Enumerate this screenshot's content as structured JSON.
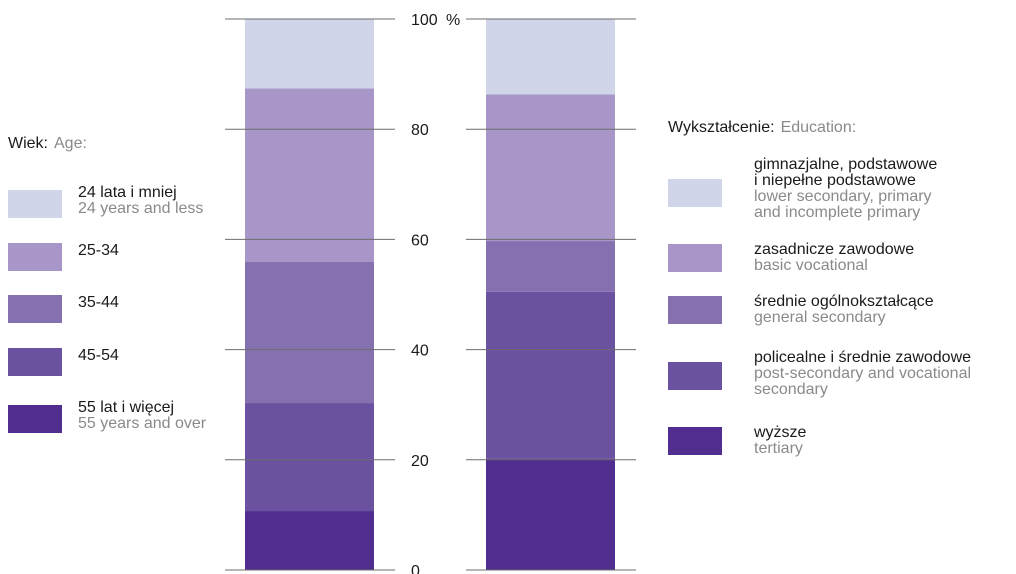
{
  "chart_data": {
    "type": "bar",
    "stacked": true,
    "yaxis": {
      "ylim": [
        0,
        100
      ],
      "ticks": [
        "0",
        "20",
        "40",
        "60",
        "80",
        "100"
      ],
      "unit": "%"
    },
    "bars": [
      {
        "id": "age",
        "segments": [
          {
            "value": 10.7,
            "color": "#512d8f"
          },
          {
            "value": 19.6,
            "color": "#6a52a0"
          },
          {
            "value": 25.6,
            "color": "#8671b0"
          },
          {
            "value": 31.5,
            "color": "#a796c7"
          },
          {
            "value": 12.6,
            "color": "#d1d5ea"
          }
        ]
      },
      {
        "id": "education",
        "segments": [
          {
            "value": 20.2,
            "color": "#512d8f"
          },
          {
            "value": 30.3,
            "color": "#6a52a0"
          },
          {
            "value": 9.2,
            "color": "#8671b0"
          },
          {
            "value": 26.6,
            "color": "#a796c7"
          },
          {
            "value": 13.7,
            "color": "#d1d5ea"
          }
        ]
      }
    ]
  },
  "legend_age": {
    "title_pl": "Wiek:",
    "title_en": "Age:",
    "items": [
      {
        "pl": "24 lata i mniej",
        "en": "24 years and less",
        "color": "#d1d5ea"
      },
      {
        "pl": "25-34",
        "en": "",
        "color": "#a796c7"
      },
      {
        "pl": "35-44",
        "en": "",
        "color": "#8671b0"
      },
      {
        "pl": "45-54",
        "en": "",
        "color": "#6a52a0"
      },
      {
        "pl": "55 lat i więcej",
        "en": "55 years and over",
        "color": "#512d8f"
      }
    ]
  },
  "legend_edu": {
    "title_pl": "Wykształcenie:",
    "title_en": "Education:",
    "items": [
      {
        "pl": "gimnazjalne, podstawowe\ni niepełne podstawowe",
        "en": "lower secondary, primary\nand incomplete primary",
        "color": "#d1d5ea"
      },
      {
        "pl": "zasadnicze zawodowe",
        "en": "basic vocational",
        "color": "#a796c7"
      },
      {
        "pl": "średnie ogólnokształcące",
        "en": "general secondary",
        "color": "#8671b0"
      },
      {
        "pl": "policealne i średnie zawodowe",
        "en": "post-secondary and vocational\nsecondary",
        "color": "#6a52a0"
      },
      {
        "pl": "wyższe",
        "en": "tertiary",
        "color": "#512d8f"
      }
    ]
  }
}
